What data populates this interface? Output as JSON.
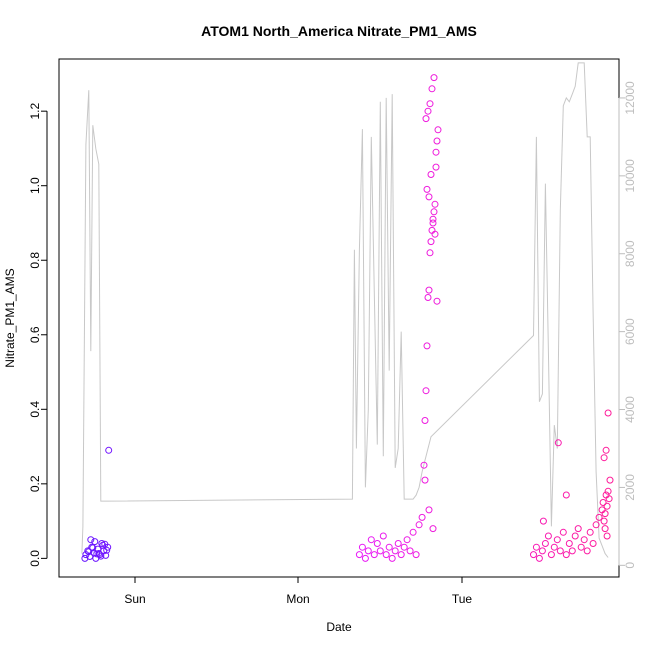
{
  "chart_data": {
    "type": "scatter",
    "title": "ATOM1 North_America Nitrate_PM1_AMS",
    "xlabel": "Date",
    "ylabel": "Nitrate_PM1_AMS",
    "x_ticks": [
      "Sun",
      "Mon",
      "Tue"
    ],
    "x_range_hours": [
      -15.7,
      40.6
    ],
    "ylim": [
      -0.05,
      1.34
    ],
    "y_ticks": [
      "0.0",
      "0.2",
      "0.4",
      "0.6",
      "0.8",
      "1.0",
      "1.2"
    ],
    "y_tick_values": [
      0.0,
      0.2,
      0.4,
      0.6,
      0.8,
      1.0,
      1.2
    ],
    "y2lim": [
      -300,
      13000
    ],
    "y2_ticks": [
      "0",
      "2000",
      "4000",
      "6000",
      "8000",
      "10000",
      "12000"
    ],
    "y2_tick_values": [
      0,
      2000,
      4000,
      6000,
      8000,
      10000,
      12000
    ],
    "colors": {
      "points_start": "#5a14ff",
      "points_mid": "#e61aff",
      "points_end": "#ff1a96",
      "altitude_line": "#c8c8c8",
      "right_axis": "#bdbdbd"
    },
    "series": [
      {
        "kind": "points",
        "x_hours": [
          -13.0,
          -12.8,
          -12.6,
          -12.4,
          -12.2,
          -12.0,
          -11.8,
          -11.6,
          -11.4,
          -11.2,
          -11.0,
          -10.8,
          -13.1,
          -12.5,
          -11.9,
          -11.3,
          -12.7,
          -12.1,
          -11.5,
          -10.9,
          -12.3,
          -11.7,
          -11.1,
          -10.7
        ],
        "values": [
          0.01,
          0.02,
          0.005,
          0.03,
          0.015,
          0.0,
          0.025,
          0.01,
          0.04,
          0.02,
          0.008,
          0.03,
          0.0,
          0.05,
          0.012,
          0.035,
          0.018,
          0.045,
          0.006,
          0.022,
          0.028,
          0.013,
          0.038,
          0.29
        ]
      },
      {
        "kind": "points",
        "x_hours": [
          14.5,
          14.8,
          15.1,
          15.4,
          15.7,
          16.0,
          16.3,
          16.6,
          16.9,
          17.2,
          17.5,
          17.8,
          18.1,
          18.4,
          18.7,
          19.0,
          19.3,
          19.6,
          19.9,
          20.2,
          20.5,
          20.8,
          21.0,
          21.1,
          21.2,
          21.3,
          21.4,
          21.5,
          21.6,
          21.7,
          21.8,
          21.9,
          22.0,
          22.1,
          22.2,
          22.3,
          22.4,
          21.2,
          21.4,
          21.6,
          21.8,
          22.0,
          22.2,
          21.3,
          21.5,
          21.7,
          21.9,
          22.1,
          22.3,
          21.1,
          21.5,
          21.9
        ],
        "values": [
          0.01,
          0.03,
          0.0,
          0.02,
          0.05,
          0.01,
          0.04,
          0.02,
          0.06,
          0.01,
          0.03,
          0.0,
          0.02,
          0.04,
          0.01,
          0.03,
          0.05,
          0.02,
          0.07,
          0.01,
          0.09,
          0.11,
          0.25,
          0.37,
          0.45,
          0.57,
          0.7,
          0.72,
          0.82,
          0.85,
          0.88,
          0.9,
          0.93,
          0.95,
          1.05,
          1.12,
          1.15,
          1.18,
          1.2,
          1.22,
          1.26,
          1.29,
          1.09,
          0.99,
          0.97,
          1.03,
          0.91,
          0.87,
          0.69,
          0.21,
          0.13,
          0.08
        ]
      },
      {
        "kind": "points",
        "x_hours": [
          32.0,
          32.3,
          32.6,
          32.9,
          33.2,
          33.5,
          33.8,
          34.1,
          34.4,
          34.7,
          35.0,
          35.3,
          35.6,
          35.9,
          36.2,
          36.5,
          36.8,
          37.1,
          37.4,
          37.7,
          38.0,
          38.3,
          38.6,
          38.9,
          39.0,
          39.1,
          39.2,
          39.3,
          39.4,
          39.5,
          39.6,
          39.7,
          39.1,
          39.3,
          39.5,
          39.2,
          39.4,
          34.5,
          35.3,
          33.0
        ],
        "values": [
          0.01,
          0.03,
          0.0,
          0.02,
          0.04,
          0.06,
          0.01,
          0.03,
          0.05,
          0.02,
          0.07,
          0.01,
          0.04,
          0.02,
          0.06,
          0.08,
          0.03,
          0.05,
          0.02,
          0.07,
          0.04,
          0.09,
          0.11,
          0.13,
          0.15,
          0.1,
          0.12,
          0.17,
          0.14,
          0.18,
          0.16,
          0.21,
          0.27,
          0.29,
          0.39,
          0.08,
          0.06,
          0.31,
          0.17,
          0.1
        ]
      },
      {
        "kind": "line",
        "name": "",
        "x_hours": [
          -13.4,
          -13.3,
          -13.0,
          -12.7,
          -12.5,
          -12.3,
          -12.0,
          -11.7,
          -11.5,
          -11.3,
          -11.1,
          -10.9,
          -10.8,
          -10.7,
          13.8,
          14.0,
          14.2,
          14.5,
          14.8,
          15.1,
          15.4,
          15.7,
          16.0,
          16.3,
          16.6,
          16.9,
          17.2,
          17.5,
          17.8,
          18.1,
          18.4,
          18.7,
          19.0,
          19.3,
          19.6,
          19.9,
          20.2,
          20.5,
          20.8,
          21.1,
          21.4,
          21.7,
          32.0,
          32.3,
          32.6,
          32.9,
          33.2,
          33.5,
          33.8,
          34.1,
          34.4,
          34.7,
          35.0,
          35.3,
          35.6,
          35.9,
          36.2,
          36.5,
          36.8,
          37.1,
          37.4,
          37.7,
          38.0,
          38.3,
          38.6,
          38.9,
          39.2,
          39.5
        ],
        "values": [
          300,
          1000,
          10800,
          12200,
          5500,
          11300,
          10700,
          10300,
          1650,
          1650,
          1650,
          1650,
          1650,
          1650,
          1700,
          8100,
          3000,
          8100,
          11200,
          2000,
          4000,
          11000,
          7000,
          3100,
          11900,
          2800,
          12000,
          5000,
          12100,
          2500,
          3000,
          6000,
          1700,
          1700,
          1700,
          1700,
          1800,
          2000,
          2400,
          2700,
          3000,
          3300,
          5900,
          11000,
          4200,
          4400,
          9800,
          5500,
          1000,
          3600,
          3000,
          9100,
          11800,
          12000,
          11900,
          12100,
          12300,
          12900,
          12900,
          12900,
          11000,
          11000,
          6500,
          2400,
          700,
          500,
          300,
          200
        ]
      }
    ]
  }
}
